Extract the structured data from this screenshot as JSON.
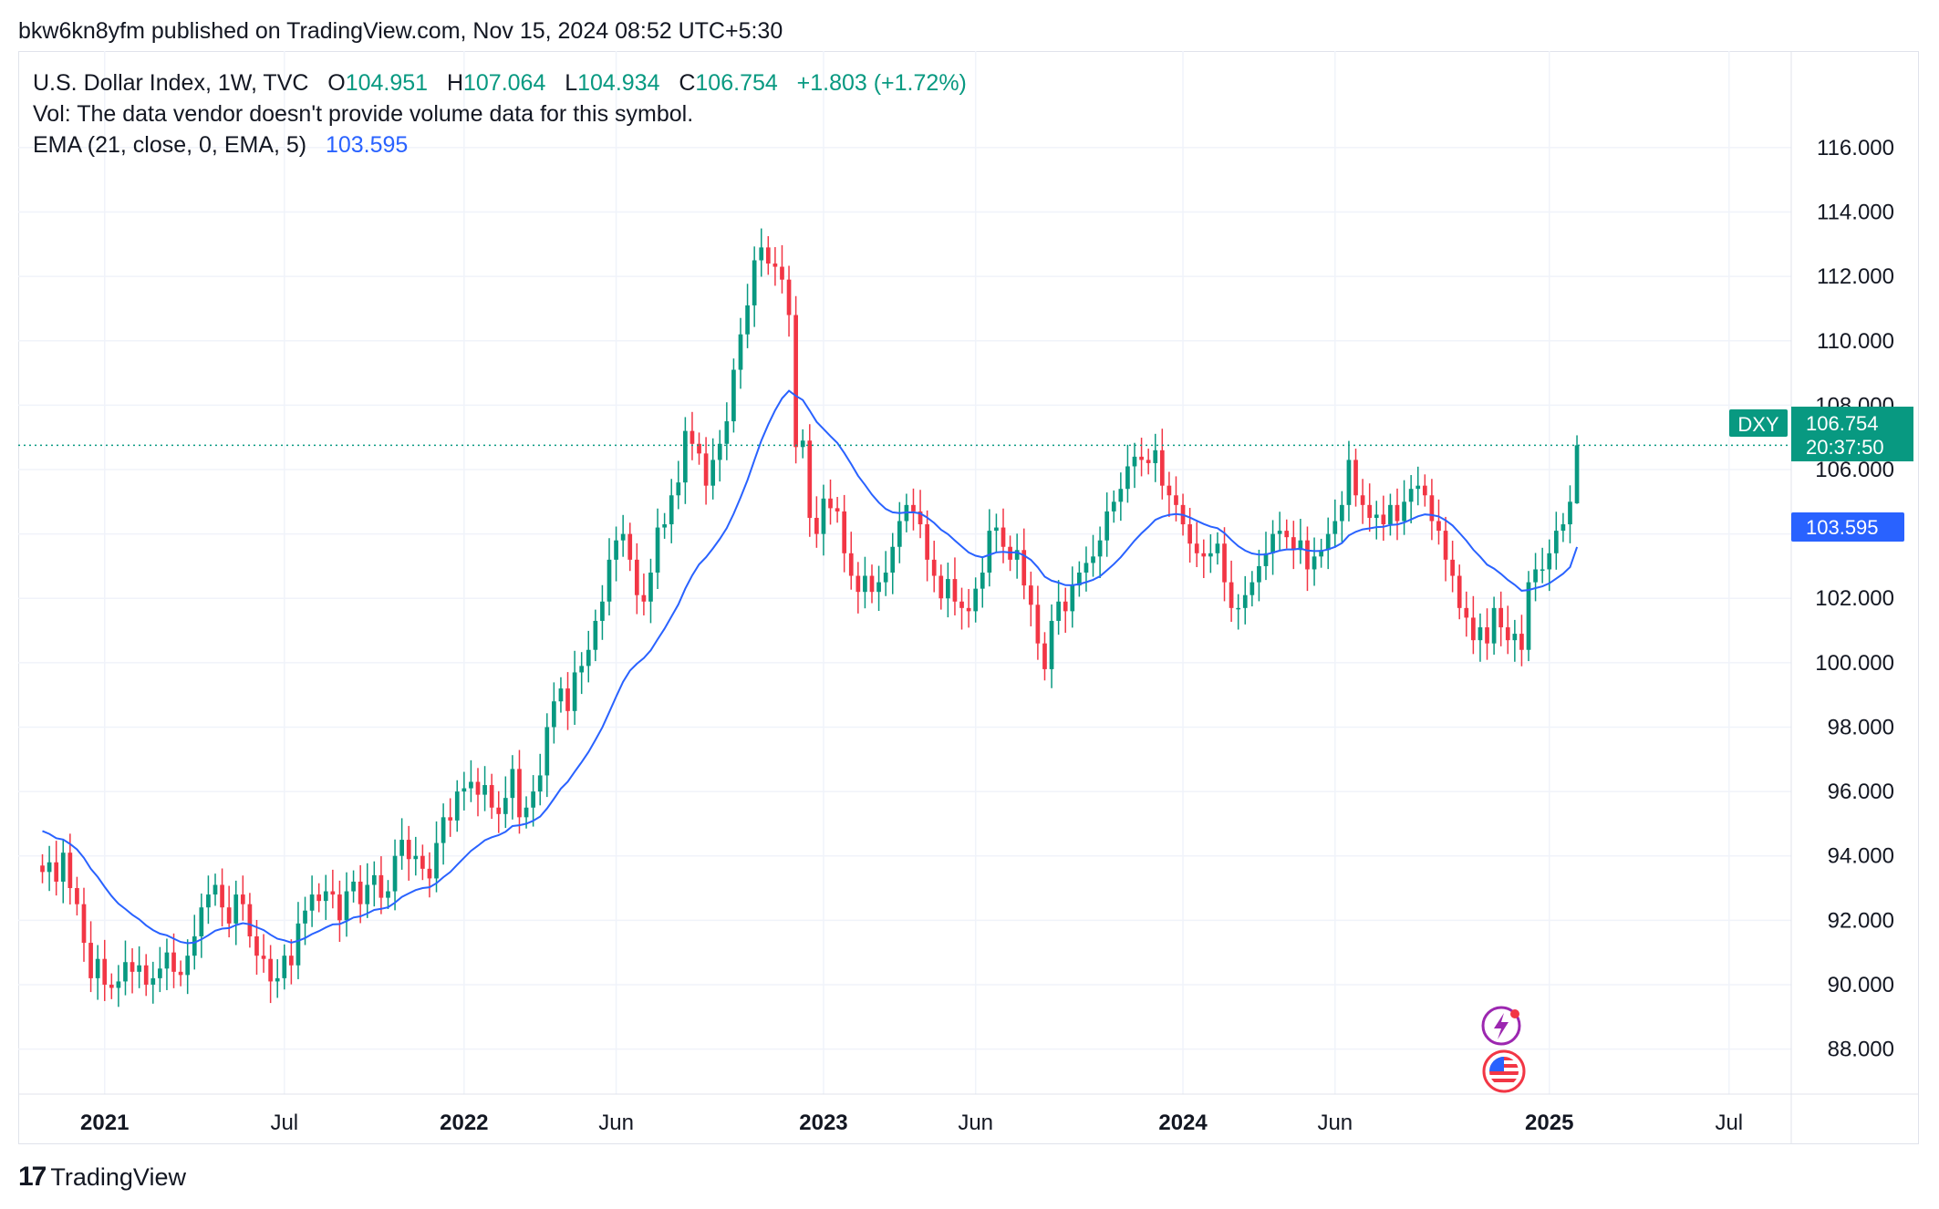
{
  "header": {
    "published": "bkw6kn8yfm published on TradingView.com, Nov 15, 2024 08:52 UTC+5:30"
  },
  "legend": {
    "symbol": "U.S. Dollar Index, 1W, TVC",
    "open_label": "O",
    "open": "104.951",
    "high_label": "H",
    "high": "107.064",
    "low_label": "L",
    "low": "104.934",
    "close_label": "C",
    "close": "106.754",
    "change": "+1.803 (+1.72%)",
    "vol_text": "Vol: The data vendor doesn't provide volume data for this symbol.",
    "ema_label": "EMA (21, close, 0, EMA, 5)",
    "ema_value": "103.595"
  },
  "price_tags": {
    "symbol": "DXY",
    "last_price": "106.754",
    "countdown": "20:37:50",
    "ema_price": "103.595"
  },
  "footer": {
    "brand_mark": "17",
    "brand_name": "TradingView"
  },
  "colors": {
    "up": "#089981",
    "down": "#f23645",
    "ema": "#2962ff",
    "grid": "#f0f3fa",
    "axis_text": "#131722"
  },
  "icons": [
    "lightning-icon",
    "us-flag-icon",
    "tradingview-logo-icon"
  ],
  "chart_data": {
    "type": "candlestick",
    "title": "U.S. Dollar Index, 1W, TVC",
    "ylim": [
      86.6,
      119.0
    ],
    "y_ticks": [
      "88.000",
      "90.000",
      "92.000",
      "94.000",
      "96.000",
      "98.000",
      "100.000",
      "102.000",
      "104.000",
      "106.000",
      "108.000",
      "110.000",
      "112.000",
      "114.000",
      "116.000"
    ],
    "x_ticks": [
      {
        "label": "2021",
        "week": 9,
        "bold": true
      },
      {
        "label": "Jul",
        "week": 35,
        "bold": false
      },
      {
        "label": "2022",
        "week": 61,
        "bold": true
      },
      {
        "label": "Jun",
        "week": 83,
        "bold": false
      },
      {
        "label": "2023",
        "week": 113,
        "bold": true
      },
      {
        "label": "Jun",
        "week": 135,
        "bold": false
      },
      {
        "label": "2024",
        "week": 165,
        "bold": true
      },
      {
        "label": "Jun",
        "week": 187,
        "bold": false
      },
      {
        "label": "2025",
        "week": 218,
        "bold": true
      },
      {
        "label": "Jul",
        "week": 244,
        "bold": false
      }
    ],
    "xlim_weeks": [
      -3.5,
      253
    ],
    "last_price": 106.754,
    "ema_last": 103.595,
    "series": [
      {
        "name": "DXY close (weekly)",
        "values": [
          93.5,
          93.8,
          93.2,
          94.1,
          93.0,
          92.5,
          91.3,
          90.2,
          90.8,
          90.0,
          89.9,
          90.1,
          90.7,
          90.4,
          90.6,
          90.0,
          90.2,
          90.5,
          91.0,
          90.4,
          90.3,
          90.9,
          91.5,
          92.4,
          92.8,
          93.1,
          92.4,
          91.9,
          92.8,
          92.5,
          91.5,
          90.9,
          90.8,
          90.1,
          90.2,
          90.9,
          90.6,
          91.9,
          92.3,
          92.8,
          92.6,
          92.9,
          92.8,
          92.0,
          92.9,
          93.2,
          92.5,
          93.1,
          93.4,
          92.7,
          92.9,
          94.0,
          94.5,
          93.9,
          94.0,
          93.6,
          93.3,
          94.4,
          95.2,
          95.1,
          96.0,
          96.1,
          96.3,
          95.9,
          96.2,
          95.5,
          95.3,
          95.8,
          96.7,
          95.2,
          95.5,
          96.0,
          96.5,
          98.0,
          98.8,
          99.2,
          98.5,
          99.7,
          99.9,
          100.4,
          101.3,
          101.9,
          103.2,
          103.8,
          104.0,
          103.2,
          102.1,
          101.9,
          102.8,
          104.2,
          104.3,
          105.2,
          105.6,
          107.2,
          106.8,
          106.5,
          105.5,
          106.3,
          106.8,
          107.5,
          109.1,
          110.2,
          111.1,
          112.5,
          112.9,
          112.4,
          112.3,
          111.9,
          110.8,
          106.7,
          106.9,
          104.5,
          104.0,
          105.1,
          104.8,
          104.7,
          103.4,
          102.7,
          102.2,
          102.7,
          102.2,
          102.5,
          102.8,
          103.6,
          104.4,
          104.9,
          104.7,
          104.3,
          103.2,
          102.7,
          102.0,
          102.6,
          101.9,
          101.7,
          101.6,
          102.3,
          102.8,
          104.1,
          104.2,
          103.6,
          103.2,
          103.5,
          102.4,
          101.8,
          100.6,
          99.8,
          101.3,
          101.9,
          101.6,
          102.4,
          102.8,
          103.1,
          103.3,
          103.8,
          104.7,
          105.0,
          105.4,
          106.1,
          106.4,
          106.3,
          106.2,
          106.6,
          105.5,
          105.2,
          104.9,
          104.3,
          103.7,
          103.4,
          103.3,
          103.4,
          103.7,
          102.5,
          101.7,
          101.7,
          102.1,
          102.5,
          103.0,
          103.4,
          104.0,
          104.1,
          103.9,
          103.5,
          103.8,
          102.9,
          103.3,
          103.5,
          104.0,
          104.4,
          104.9,
          106.3,
          105.2,
          104.9,
          104.5,
          104.6,
          104.3,
          104.9,
          104.4,
          105.0,
          105.4,
          105.5,
          105.2,
          104.4,
          104.1,
          103.2,
          102.7,
          101.7,
          101.4,
          100.7,
          101.1,
          100.6,
          101.7,
          101.1,
          100.7,
          100.9,
          100.4,
          102.5,
          102.9,
          102.9,
          103.4,
          104.1,
          104.3,
          105.0,
          106.754
        ]
      }
    ]
  }
}
